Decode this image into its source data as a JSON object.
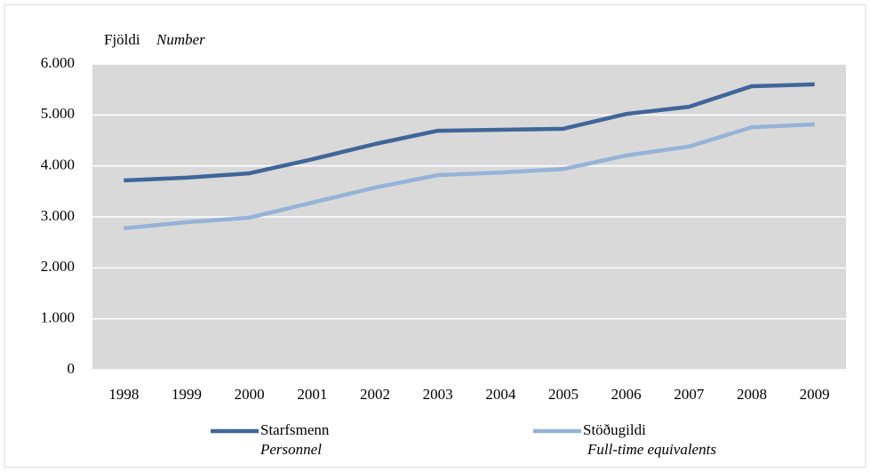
{
  "chart_data": {
    "type": "line",
    "y_label": "Fjöldi",
    "y_label_translation": "Number",
    "categories": [
      "1998",
      "1999",
      "2000",
      "2001",
      "2002",
      "2003",
      "2004",
      "2005",
      "2006",
      "2007",
      "2008",
      "2009"
    ],
    "series": [
      {
        "name": "Starfsmenn",
        "translation": "Personnel",
        "color": "#3f6699",
        "values": [
          3715,
          3770,
          3855,
          4130,
          4430,
          4690,
          4710,
          4730,
          5020,
          5160,
          5565,
          5600
        ]
      },
      {
        "name": "Stöðugildi",
        "translation": "Full-time equivalents",
        "color": "#95b3d7",
        "values": [
          2775,
          2895,
          2985,
          3280,
          3575,
          3820,
          3870,
          3940,
          4205,
          4380,
          4760,
          4815
        ]
      }
    ],
    "ylim": [
      0,
      6000
    ],
    "yticks": [
      0,
      {
        "value": 1000,
        "label": "1.000"
      },
      {
        "value": 2000,
        "label": "2.000"
      },
      {
        "value": 3000,
        "label": "3.000"
      },
      {
        "value": 4000,
        "label": "4.000"
      },
      {
        "value": 5000,
        "label": "5.000"
      },
      {
        "value": 6000,
        "label": "6.000"
      }
    ],
    "grid": true,
    "legend": "bottom"
  }
}
